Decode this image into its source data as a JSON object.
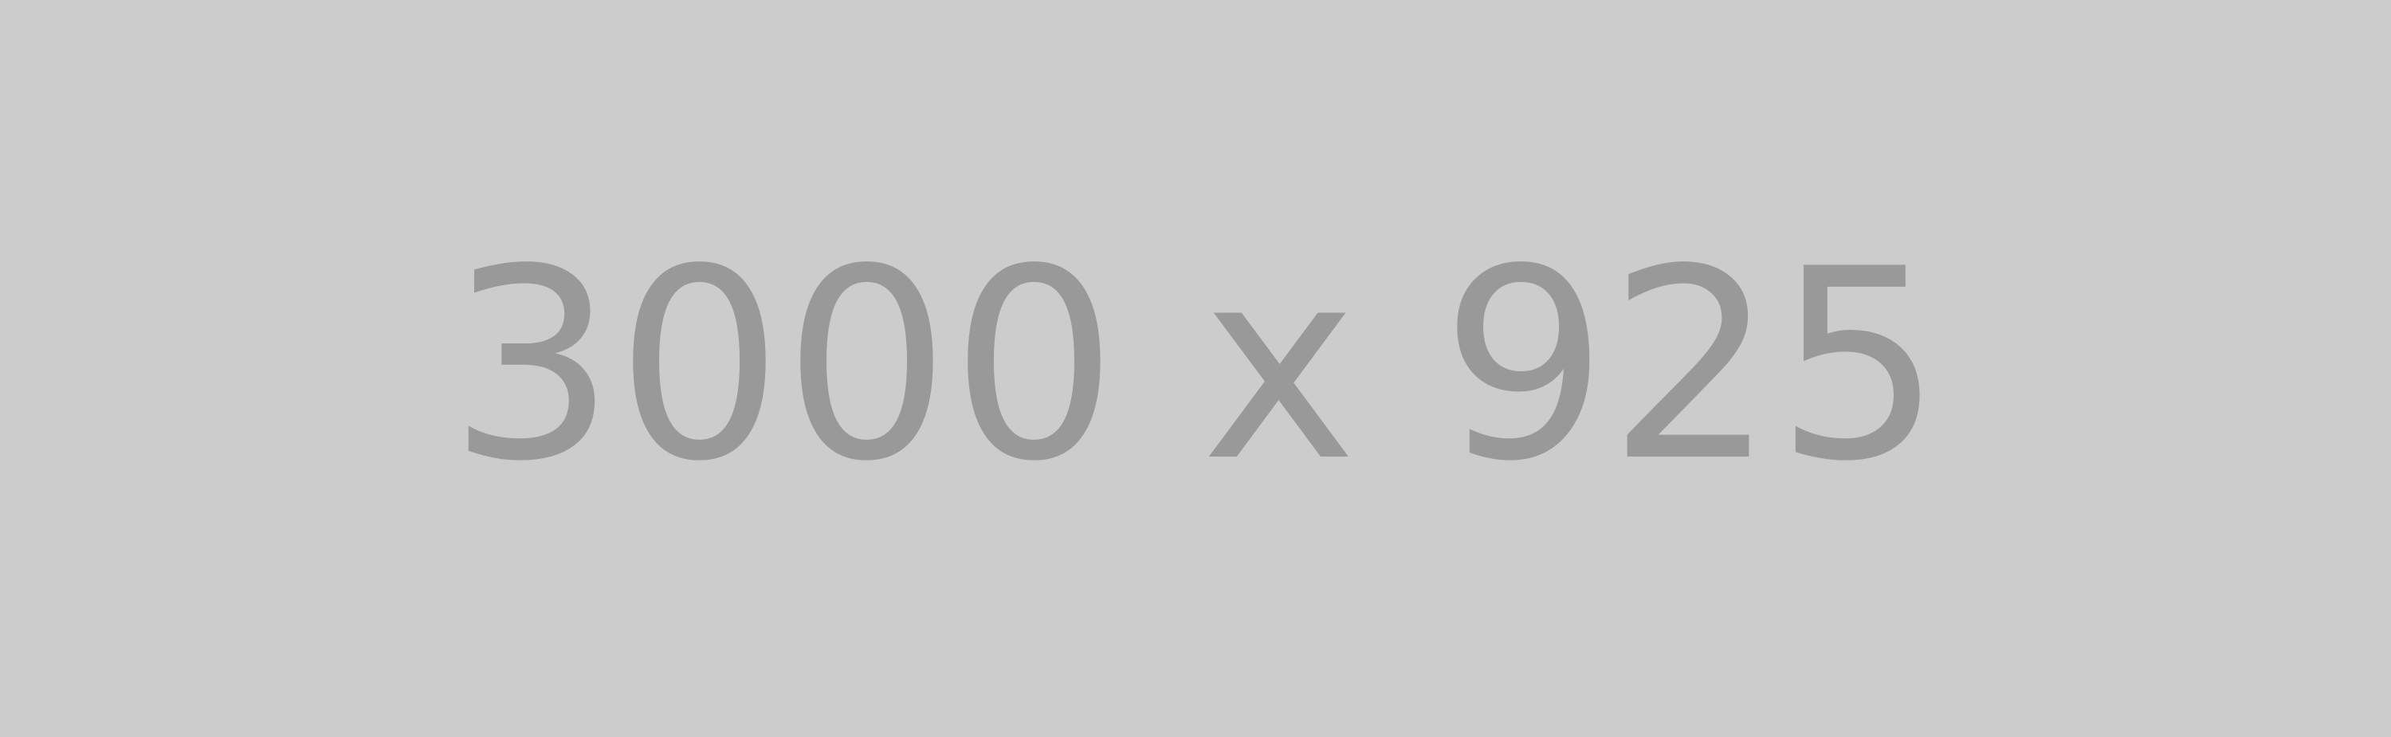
{
  "placeholder": {
    "text": "3000 x 925",
    "background_color": "#cccccc",
    "text_color": "#999999"
  }
}
